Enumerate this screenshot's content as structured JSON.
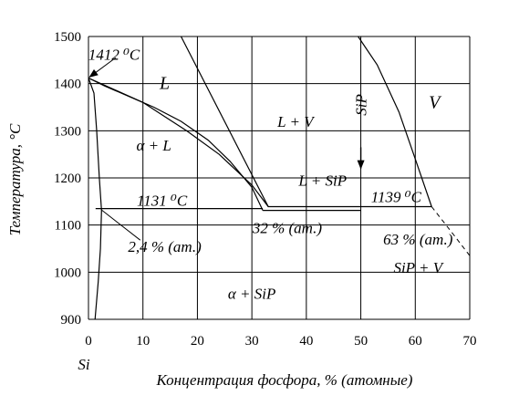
{
  "chart_data": {
    "type": "line",
    "title": "",
    "xlabel": "Концентрация фосфора, % (атомные)",
    "ylabel": "Температура, °C",
    "xlim": [
      0,
      70
    ],
    "ylim": [
      900,
      1500
    ],
    "grid": true,
    "x_ticks": [
      "0",
      "10",
      "20",
      "30",
      "40",
      "50",
      "60",
      "70"
    ],
    "y_ticks": [
      "900",
      "1000",
      "1100",
      "1200",
      "1300",
      "1400",
      "1500"
    ],
    "x_origin_label": "Si",
    "regions": [
      {
        "label": "L",
        "x": 14,
        "y": 1400,
        "size": "lg"
      },
      {
        "label": "L + V",
        "x": 38,
        "y": 1320
      },
      {
        "label": "V",
        "x": 63.5,
        "y": 1360,
        "size": "lg"
      },
      {
        "label": "α + L",
        "x": 12,
        "y": 1270
      },
      {
        "label": "L + SiP",
        "x": 43,
        "y": 1195
      },
      {
        "label": "SiP + V",
        "x": 60.5,
        "y": 1010
      },
      {
        "label": "α + SiP",
        "x": 30,
        "y": 955
      }
    ],
    "annotations": [
      {
        "label": "1412 ⁰C",
        "x": 4.7,
        "y": 1462
      },
      {
        "label": "1131 ⁰C",
        "x": 13.5,
        "y": 1153
      },
      {
        "label": "1139 ⁰C",
        "x": 56.5,
        "y": 1160
      },
      {
        "label": "32 % (ат.)",
        "x": 36.5,
        "y": 1095
      },
      {
        "label": "2,4 % (ат.)",
        "x": 14,
        "y": 1055
      },
      {
        "label": "63 % (ат.)",
        "x": 60.5,
        "y": 1070
      },
      {
        "label": "SiP",
        "x": 50,
        "y": 1355,
        "rotate": true
      }
    ],
    "series": [
      {
        "values": [
          [
            0,
            1412
          ],
          [
            3,
            1395
          ],
          [
            7,
            1375
          ],
          [
            12,
            1350
          ],
          [
            17,
            1320
          ],
          [
            22,
            1280
          ],
          [
            26,
            1235
          ],
          [
            30,
            1180
          ],
          [
            32,
            1131
          ]
        ]
      },
      {
        "values": [
          [
            0,
            1412
          ],
          [
            10,
            1360
          ],
          [
            18,
            1300
          ],
          [
            24,
            1250
          ],
          [
            30,
            1185
          ],
          [
            33,
            1139
          ],
          [
            50,
            1139
          ]
        ]
      },
      {
        "values": [
          [
            32,
            1131
          ],
          [
            50,
            1131
          ]
        ]
      },
      {
        "values": [
          [
            0,
            1412
          ],
          [
            1,
            1380
          ],
          [
            1.5,
            1300
          ],
          [
            2,
            1200
          ],
          [
            2.4,
            1131
          ]
        ]
      },
      {
        "values": [
          [
            2.4,
            1131
          ],
          [
            2.2,
            1050
          ],
          [
            1.8,
            980
          ],
          [
            1.2,
            900
          ]
        ]
      },
      {
        "values": [
          [
            1.3,
            1135
          ],
          [
            32,
            1135
          ]
        ]
      },
      {
        "values": [
          [
            17,
            1500
          ],
          [
            33,
            1139
          ]
        ]
      },
      {
        "values": [
          [
            50,
            1139
          ],
          [
            63,
            1139
          ]
        ]
      },
      {
        "values": [
          [
            49.5,
            1500
          ],
          [
            53,
            1440
          ],
          [
            57,
            1340
          ],
          [
            60,
            1240
          ],
          [
            63,
            1139
          ]
        ]
      },
      {
        "values": [
          [
            63,
            1139
          ],
          [
            67,
            1080
          ],
          [
            70,
            1035
          ]
        ]
      }
    ]
  }
}
